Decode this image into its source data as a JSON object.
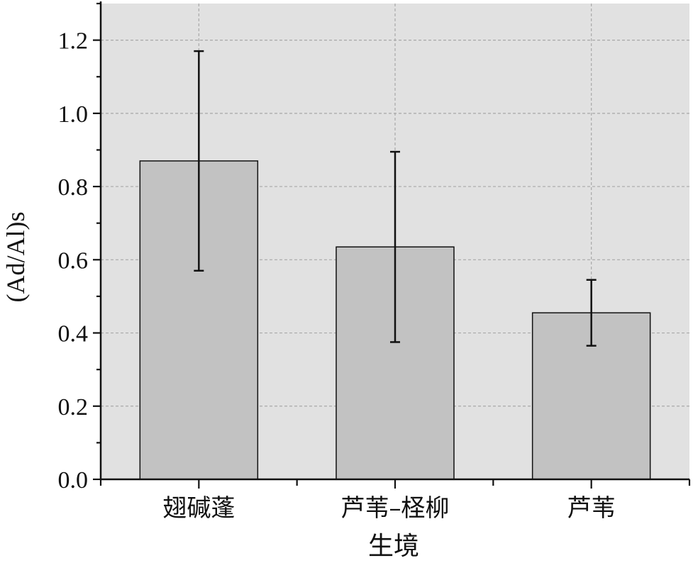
{
  "chart_data": {
    "type": "bar",
    "categories": [
      "翅碱蓬",
      "芦苇–柽柳",
      "芦苇"
    ],
    "values": [
      0.87,
      0.635,
      0.455
    ],
    "error_upper": [
      1.17,
      0.895,
      0.545
    ],
    "error_lower": [
      0.57,
      0.375,
      0.365
    ],
    "title": "",
    "xlabel": "生境",
    "ylabel": "(Ad/Al)s",
    "ylim": [
      0,
      1.3
    ],
    "yticks": [
      "0.0",
      "0.2",
      "0.4",
      "0.6",
      "0.8",
      "1.0",
      "1.2"
    ],
    "grid": true,
    "colors": {
      "plot_background": "#e1e1e1",
      "bar_fill": "#c2c2c2",
      "bar_stroke": "#111111",
      "grid": "#a8a8a8"
    }
  }
}
